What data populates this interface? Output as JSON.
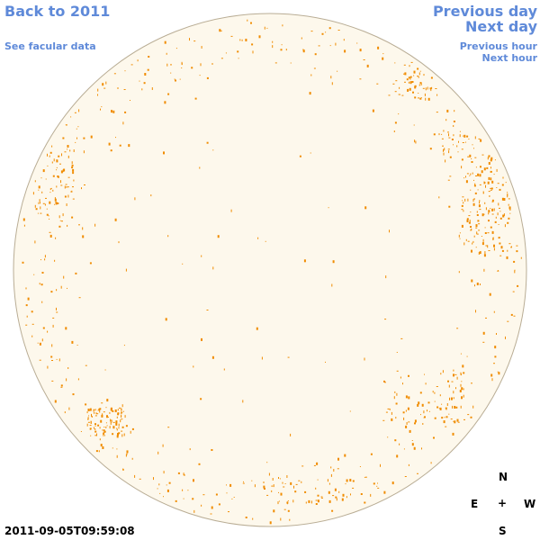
{
  "nav": {
    "back_year": "Back to 2011",
    "facular_data": "See facular data",
    "previous_day": "Previous day",
    "next_day": "Next day",
    "previous_hour": "Previous hour",
    "next_hour": "Next hour"
  },
  "compass": {
    "north": "N",
    "south": "S",
    "east": "E",
    "west": "W",
    "center": "+"
  },
  "timestamp": "2011-09-05T09:59:08",
  "colors": {
    "disk_fill": "#fdf8ec",
    "disk_stroke": "#b9ad95",
    "facula": "#f08c00",
    "link": "#5f8ad9"
  }
}
